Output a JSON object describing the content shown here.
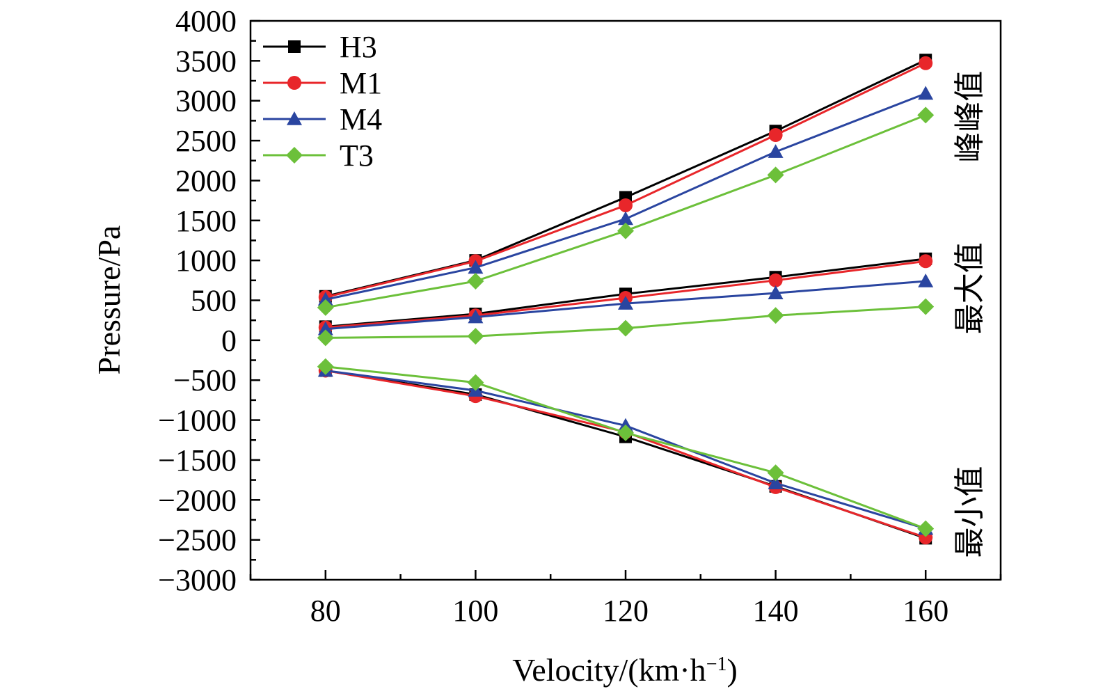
{
  "chart_data": {
    "type": "line",
    "title": "",
    "xlabel": "Velocity/(km·h",
    "xlabel_sup": "−1",
    "xlabel_end": ")",
    "ylabel": "Pressure/Pa",
    "x": [
      80,
      100,
      120,
      140,
      160
    ],
    "xlim": [
      70,
      170
    ],
    "ylim": [
      -3000,
      4000
    ],
    "x_ticks": [
      "80",
      "100",
      "120",
      "140",
      "160"
    ],
    "y_ticks": [
      "4000",
      "3500",
      "3000",
      "2500",
      "2000",
      "1500",
      "1000",
      "500",
      "0",
      "−500",
      "−1000",
      "−1500",
      "−2000",
      "−2500",
      "−3000"
    ],
    "y_tick_values": [
      4000,
      3500,
      3000,
      2500,
      2000,
      1500,
      1000,
      500,
      0,
      -500,
      -1000,
      -1500,
      -2000,
      -2500,
      -3000
    ],
    "legend_position": "top-left",
    "group_labels": [
      {
        "text": "峰峰值",
        "ref": 2800
      },
      {
        "text": "最大值",
        "ref": 650
      },
      {
        "text": "最小值",
        "ref": -2150
      }
    ],
    "series": [
      {
        "name": "H3",
        "color": "#000000",
        "marker": "square",
        "peak_to_peak": [
          550,
          1000,
          1790,
          2620,
          3510
        ],
        "maximum": [
          170,
          330,
          580,
          790,
          1020
        ],
        "minimum": [
          -380,
          -680,
          -1210,
          -1830,
          -2480
        ]
      },
      {
        "name": "M1",
        "color": "#e8262a",
        "marker": "circle",
        "peak_to_peak": [
          540,
          990,
          1690,
          2570,
          3470
        ],
        "maximum": [
          160,
          310,
          530,
          750,
          990
        ],
        "minimum": [
          -380,
          -700,
          -1150,
          -1840,
          -2470
        ]
      },
      {
        "name": "M4",
        "color": "#2a45a0",
        "marker": "triangle",
        "peak_to_peak": [
          510,
          910,
          1520,
          2360,
          3090
        ],
        "maximum": [
          140,
          290,
          460,
          590,
          740
        ],
        "minimum": [
          -380,
          -630,
          -1070,
          -1790,
          -2360
        ]
      },
      {
        "name": "T3",
        "color": "#6cc03a",
        "marker": "diamond",
        "peak_to_peak": [
          410,
          740,
          1370,
          2070,
          2820
        ],
        "maximum": [
          30,
          50,
          150,
          310,
          420
        ],
        "minimum": [
          -330,
          -530,
          -1160,
          -1660,
          -2360
        ]
      }
    ]
  }
}
